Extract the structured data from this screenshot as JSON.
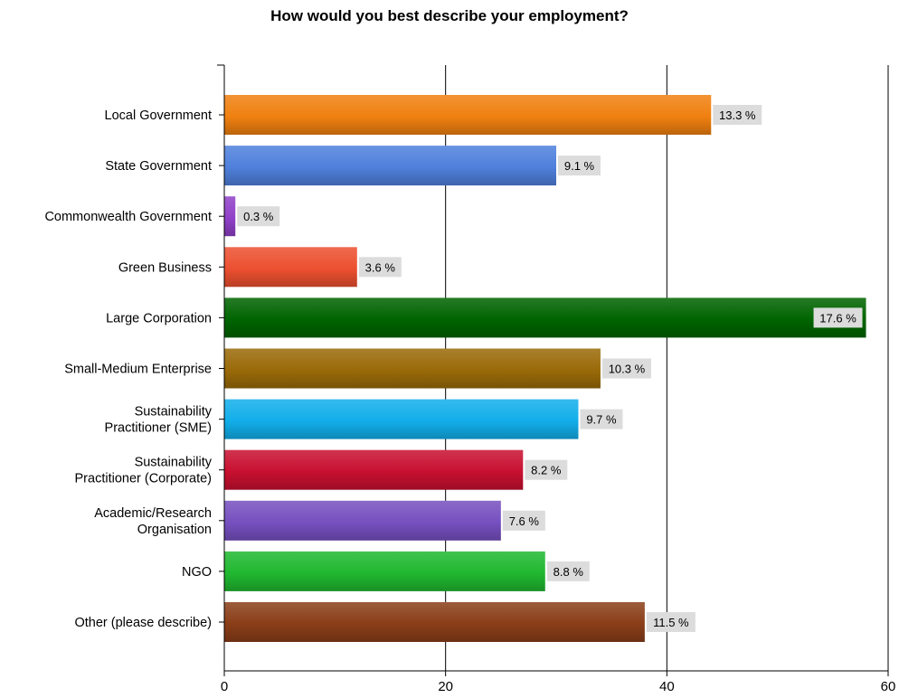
{
  "chart_data": {
    "type": "bar",
    "orientation": "horizontal",
    "title": "How would you best describe your employment?",
    "xlabel": "",
    "ylabel": "",
    "xlim": [
      0,
      60
    ],
    "xticks": [
      0,
      20,
      40,
      60
    ],
    "grid": true,
    "categories": [
      [
        "Local Government"
      ],
      [
        "State Government"
      ],
      [
        "Commonwealth Government"
      ],
      [
        "Green Business"
      ],
      [
        "Large Corporation"
      ],
      [
        "Small-Medium Enterprise"
      ],
      [
        "Sustainability",
        "Practitioner (SME)"
      ],
      [
        "Sustainability",
        "Practitioner (Corporate)"
      ],
      [
        "Academic/Research",
        "Organisation"
      ],
      [
        "NGO"
      ],
      [
        "Other (please describe)"
      ]
    ],
    "values": [
      44,
      30,
      1,
      12,
      58,
      34,
      32,
      27,
      25,
      29,
      38
    ],
    "data_labels": [
      "13.3 %",
      "9.1 %",
      "0.3 %",
      "3.6 %",
      "17.6 %",
      "10.3 %",
      "9.7 %",
      "8.2 %",
      "7.6 %",
      "8.8 %",
      "11.5 %"
    ],
    "colors": [
      "#f08010",
      "#4f80dc",
      "#9040c8",
      "#ec5030",
      "#006400",
      "#9a6a08",
      "#12aeea",
      "#c81030",
      "#7650c0",
      "#20b830",
      "#8a3e18"
    ],
    "label_bg": "#dcdcdc"
  }
}
